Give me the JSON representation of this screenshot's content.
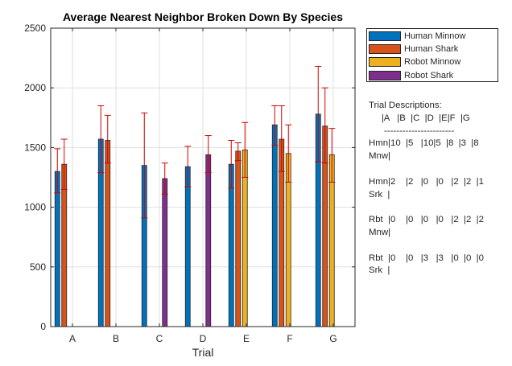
{
  "chart_data": {
    "type": "bar",
    "title": "Average Nearest Neighbor Broken Down By Species",
    "xlabel": "Trial",
    "ylabel": "",
    "ylim": [
      0,
      2500
    ],
    "yticks": [
      0,
      500,
      1000,
      1500,
      2000,
      2500
    ],
    "grid": true,
    "legend_position": "outside-right-top",
    "categories": [
      "A",
      "B",
      "C",
      "D",
      "E",
      "F",
      "G"
    ],
    "series": [
      {
        "name": "Human Minnow",
        "color": "#0072BD",
        "values": [
          1300,
          1570,
          1350,
          1340,
          1360,
          1690,
          1780
        ],
        "err_low": [
          1120,
          1290,
          910,
          1170,
          1160,
          1520,
          1380
        ],
        "err_high": [
          1490,
          1850,
          1790,
          1510,
          1560,
          1850,
          2180
        ]
      },
      {
        "name": "Human Shark",
        "color": "#D95319",
        "values": [
          1360,
          1560,
          null,
          null,
          1470,
          1570,
          1680
        ],
        "err_low": [
          1150,
          1370,
          null,
          null,
          1390,
          1300,
          1370
        ],
        "err_high": [
          1570,
          1770,
          null,
          null,
          1540,
          1850,
          2000
        ]
      },
      {
        "name": "Robot Minnow",
        "color": "#EDB120",
        "values": [
          null,
          null,
          null,
          null,
          1480,
          1450,
          1440
        ],
        "err_low": [
          null,
          null,
          null,
          null,
          1250,
          1210,
          1210
        ],
        "err_high": [
          null,
          null,
          null,
          null,
          1710,
          1690,
          1660
        ]
      },
      {
        "name": "Robot Shark",
        "color": "#7E2F8E",
        "values": [
          null,
          null,
          1240,
          1440,
          null,
          null,
          null
        ],
        "err_low": [
          null,
          null,
          1110,
          1290,
          null,
          null,
          null
        ],
        "err_high": [
          null,
          null,
          1370,
          1600,
          null,
          null,
          null
        ]
      }
    ],
    "error_bar_color": "#D00000"
  },
  "legend": {
    "items": [
      {
        "label": "Human Minnow",
        "color": "#0072BD"
      },
      {
        "label": "Human Shark",
        "color": "#D95319"
      },
      {
        "label": "Robot Minnow",
        "color": "#EDB120"
      },
      {
        "label": "Robot Shark",
        "color": "#7E2F8E"
      }
    ]
  },
  "trial_descriptions": {
    "title": "Trial Descriptions:",
    "header": "     |A   |B  |C  |D  |E|F  |G",
    "rule": "      -----------------------",
    "rows": [
      {
        "line1": "Hmn|10  |5   |10|5  |8  |3  |8",
        "line2": "Mnw|"
      },
      {
        "line1": "Hmn|2    |2   |0   |0   |2  |2  |1",
        "line2": "Srk  |"
      },
      {
        "line1": "Rbt  |0    |0   |0   |0   |2  |2  |2",
        "line2": "Mnw|"
      },
      {
        "line1": "Rbt  |0    |0   |3   |3   |0  |0  |0",
        "line2": "Srk  |"
      }
    ]
  }
}
